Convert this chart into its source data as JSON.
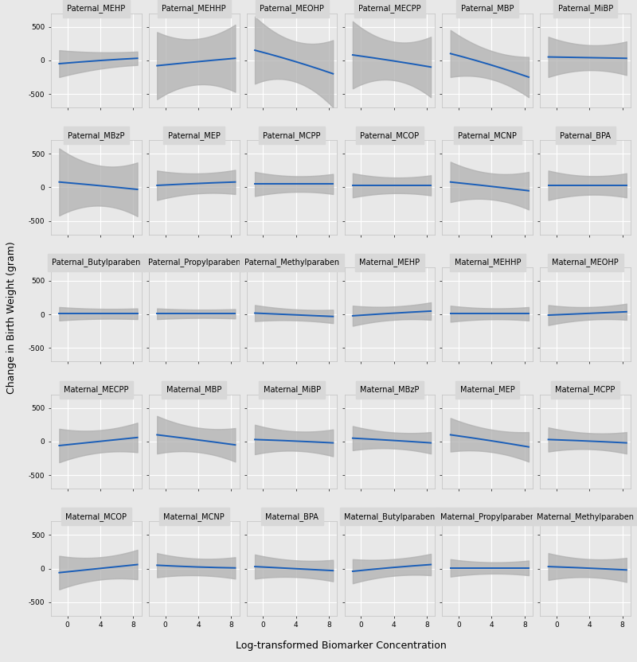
{
  "panels": [
    {
      "name": "Paternal_MEHP",
      "row": 0,
      "col": 0,
      "y": [
        -50,
        0,
        30
      ],
      "ci": [
        200,
        100,
        100
      ]
    },
    {
      "name": "Paternal_MEHHP",
      "row": 0,
      "col": 1,
      "y": [
        -80,
        -20,
        30
      ],
      "ci": [
        500,
        180,
        500
      ]
    },
    {
      "name": "Paternal_MEOHP",
      "row": 0,
      "col": 2,
      "y": [
        150,
        0,
        -200
      ],
      "ci": [
        500,
        100,
        500
      ]
    },
    {
      "name": "Paternal_MECPP",
      "row": 0,
      "col": 3,
      "y": [
        80,
        0,
        -100
      ],
      "ci": [
        500,
        100,
        450
      ]
    },
    {
      "name": "Paternal_MBP",
      "row": 0,
      "col": 4,
      "y": [
        100,
        -50,
        -250
      ],
      "ci": [
        350,
        100,
        300
      ]
    },
    {
      "name": "Paternal_MiBP",
      "row": 0,
      "col": 5,
      "y": [
        50,
        40,
        30
      ],
      "ci": [
        300,
        100,
        250
      ]
    },
    {
      "name": "Paternal_MBzP",
      "row": 1,
      "col": 0,
      "y": [
        80,
        30,
        -30
      ],
      "ci": [
        500,
        150,
        400
      ]
    },
    {
      "name": "Paternal_MEP",
      "row": 1,
      "col": 1,
      "y": [
        30,
        60,
        80
      ],
      "ci": [
        220,
        100,
        180
      ]
    },
    {
      "name": "Paternal_MCPP",
      "row": 1,
      "col": 2,
      "y": [
        50,
        50,
        50
      ],
      "ci": [
        180,
        70,
        150
      ]
    },
    {
      "name": "Paternal_MCOP",
      "row": 1,
      "col": 3,
      "y": [
        30,
        30,
        30
      ],
      "ci": [
        180,
        70,
        150
      ]
    },
    {
      "name": "Paternal_MCNP",
      "row": 1,
      "col": 4,
      "y": [
        80,
        20,
        -50
      ],
      "ci": [
        300,
        100,
        280
      ]
    },
    {
      "name": "Paternal_BPA",
      "row": 1,
      "col": 5,
      "y": [
        30,
        30,
        30
      ],
      "ci": [
        220,
        80,
        180
      ]
    },
    {
      "name": "Paternal_Butylparaben",
      "row": 2,
      "col": 0,
      "y": [
        10,
        10,
        10
      ],
      "ci": [
        100,
        60,
        80
      ]
    },
    {
      "name": "Paternal_Propylparaben",
      "row": 2,
      "col": 1,
      "y": [
        10,
        10,
        10
      ],
      "ci": [
        80,
        50,
        70
      ]
    },
    {
      "name": "Paternal_Methylparaben",
      "row": 2,
      "col": 2,
      "y": [
        20,
        -5,
        -30
      ],
      "ci": [
        120,
        55,
        100
      ]
    },
    {
      "name": "Maternal_MEHP",
      "row": 2,
      "col": 3,
      "y": [
        -20,
        20,
        50
      ],
      "ci": [
        150,
        60,
        130
      ]
    },
    {
      "name": "Maternal_MEHHP",
      "row": 2,
      "col": 4,
      "y": [
        10,
        10,
        10
      ],
      "ci": [
        120,
        55,
        100
      ]
    },
    {
      "name": "Maternal_MEOHP",
      "row": 2,
      "col": 5,
      "y": [
        -10,
        15,
        40
      ],
      "ci": [
        150,
        55,
        120
      ]
    },
    {
      "name": "Maternal_MECPP",
      "row": 3,
      "col": 0,
      "y": [
        -60,
        0,
        60
      ],
      "ci": [
        250,
        100,
        220
      ]
    },
    {
      "name": "Maternal_MBP",
      "row": 3,
      "col": 1,
      "y": [
        100,
        30,
        -50
      ],
      "ci": [
        280,
        100,
        250
      ]
    },
    {
      "name": "Maternal_MiBP",
      "row": 3,
      "col": 2,
      "y": [
        30,
        10,
        -20
      ],
      "ci": [
        220,
        80,
        200
      ]
    },
    {
      "name": "Maternal_MBzP",
      "row": 3,
      "col": 3,
      "y": [
        50,
        20,
        -20
      ],
      "ci": [
        180,
        70,
        160
      ]
    },
    {
      "name": "Maternal_MEP",
      "row": 3,
      "col": 4,
      "y": [
        100,
        20,
        -80
      ],
      "ci": [
        250,
        100,
        220
      ]
    },
    {
      "name": "Maternal_MCPP",
      "row": 3,
      "col": 5,
      "y": [
        30,
        10,
        -20
      ],
      "ci": [
        180,
        70,
        160
      ]
    },
    {
      "name": "Maternal_MCOP",
      "row": 4,
      "col": 0,
      "y": [
        -60,
        0,
        60
      ],
      "ci": [
        250,
        100,
        220
      ]
    },
    {
      "name": "Maternal_MCNP",
      "row": 4,
      "col": 1,
      "y": [
        50,
        20,
        10
      ],
      "ci": [
        180,
        80,
        160
      ]
    },
    {
      "name": "Maternal_BPA",
      "row": 4,
      "col": 2,
      "y": [
        30,
        0,
        -30
      ],
      "ci": [
        180,
        80,
        160
      ]
    },
    {
      "name": "Maternal_Butylparaben",
      "row": 4,
      "col": 3,
      "y": [
        -40,
        20,
        60
      ],
      "ci": [
        180,
        80,
        160
      ]
    },
    {
      "name": "Maternal_Propylparaben",
      "row": 4,
      "col": 4,
      "y": [
        10,
        10,
        10
      ],
      "ci": [
        130,
        50,
        110
      ]
    },
    {
      "name": "Maternal_Methylparaben",
      "row": 4,
      "col": 5,
      "y": [
        30,
        10,
        -20
      ],
      "ci": [
        200,
        80,
        180
      ]
    }
  ],
  "nrows": 5,
  "ncols": 6,
  "xlim": [
    -2,
    9
  ],
  "ylim": [
    -700,
    700
  ],
  "yticks": [
    -500,
    0,
    500
  ],
  "xticks": [
    0,
    4,
    8
  ],
  "xlabel": "Log-transformed Biomarker Concentration",
  "ylabel": "Change in Birth Weight (gram)",
  "bg_color": "#e8e8e8",
  "grid_color": "#ffffff",
  "line_color": "#1a5eb8",
  "ci_color": "#b0b0b0",
  "title_bg": "#d8d8d8",
  "title_fontsize": 7.0,
  "tick_fontsize": 6.5,
  "label_fontsize": 9,
  "fig_bg": "#e8e8e8"
}
